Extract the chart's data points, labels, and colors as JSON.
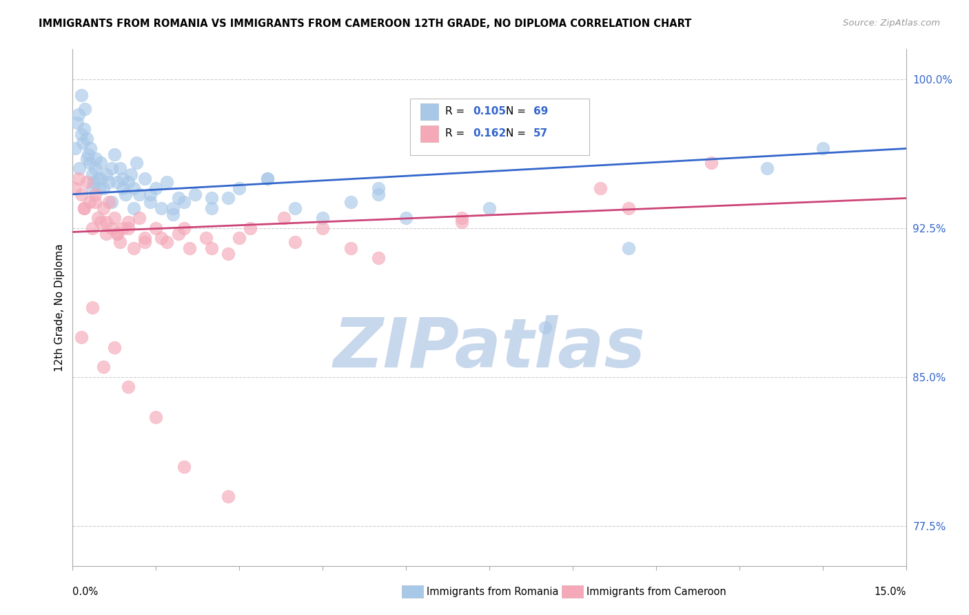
{
  "title": "IMMIGRANTS FROM ROMANIA VS IMMIGRANTS FROM CAMEROON 12TH GRADE, NO DIPLOMA CORRELATION CHART",
  "source": "Source: ZipAtlas.com",
  "ylabel": "12th Grade, No Diploma",
  "xlim": [
    0.0,
    15.0
  ],
  "ylim": [
    75.5,
    101.5
  ],
  "yticks": [
    77.5,
    85.0,
    92.5,
    100.0
  ],
  "ytick_labels": [
    "77.5%",
    "85.0%",
    "92.5%",
    "100.0%"
  ],
  "romania_color": "#a8c8e8",
  "cameroon_color": "#f4a8b8",
  "line_romania_color": "#3366cc",
  "line_cameroon_color": "#cc4477",
  "legend_text_color": "#3366cc",
  "romania_R": 0.105,
  "romania_N": 69,
  "cameroon_R": 0.162,
  "cameroon_N": 57,
  "watermark": "ZIPatlas",
  "watermark_color": "#c8d8ec",
  "romania_line_y0": 94.2,
  "romania_line_y1": 96.5,
  "cameroon_line_y0": 92.3,
  "cameroon_line_y1": 94.0,
  "romania_x": [
    0.05,
    0.08,
    0.1,
    0.12,
    0.15,
    0.18,
    0.2,
    0.22,
    0.25,
    0.28,
    0.3,
    0.32,
    0.35,
    0.38,
    0.4,
    0.42,
    0.45,
    0.48,
    0.5,
    0.55,
    0.6,
    0.65,
    0.7,
    0.75,
    0.8,
    0.85,
    0.9,
    0.95,
    1.0,
    1.05,
    1.1,
    1.15,
    1.2,
    1.3,
    1.4,
    1.5,
    1.6,
    1.7,
    1.8,
    1.9,
    2.0,
    2.2,
    2.5,
    2.8,
    3.0,
    3.5,
    4.0,
    4.5,
    5.0,
    5.5,
    6.0,
    7.5,
    8.5,
    10.0,
    12.5,
    13.5,
    0.15,
    0.25,
    0.35,
    0.5,
    0.7,
    0.9,
    1.1,
    1.4,
    1.8,
    2.5,
    3.5,
    5.5,
    9.0
  ],
  "romania_y": [
    96.5,
    97.8,
    98.2,
    95.5,
    99.2,
    96.8,
    97.5,
    98.5,
    97.0,
    96.2,
    95.8,
    96.5,
    95.2,
    94.8,
    95.5,
    96.0,
    95.0,
    94.5,
    95.8,
    94.5,
    95.2,
    94.8,
    95.5,
    96.2,
    94.8,
    95.5,
    95.0,
    94.2,
    94.8,
    95.2,
    94.5,
    95.8,
    94.2,
    95.0,
    93.8,
    94.5,
    93.5,
    94.8,
    93.2,
    94.0,
    93.8,
    94.2,
    93.5,
    94.0,
    94.5,
    95.0,
    93.5,
    93.0,
    93.8,
    94.2,
    93.0,
    93.5,
    87.5,
    91.5,
    95.5,
    96.5,
    97.2,
    96.0,
    94.5,
    95.0,
    93.8,
    94.5,
    93.5,
    94.2,
    93.5,
    94.0,
    95.0,
    94.5,
    96.5
  ],
  "cameroon_x": [
    0.05,
    0.1,
    0.15,
    0.2,
    0.25,
    0.3,
    0.35,
    0.4,
    0.45,
    0.5,
    0.55,
    0.6,
    0.65,
    0.7,
    0.75,
    0.8,
    0.85,
    0.9,
    1.0,
    1.1,
    1.2,
    1.3,
    1.5,
    1.7,
    1.9,
    2.1,
    2.4,
    2.8,
    3.2,
    3.8,
    4.5,
    5.5,
    7.0,
    9.5,
    11.5,
    0.2,
    0.4,
    0.6,
    0.8,
    1.0,
    1.3,
    1.6,
    2.0,
    2.5,
    3.0,
    4.0,
    5.0,
    7.0,
    10.0,
    0.15,
    0.35,
    0.55,
    0.75,
    1.0,
    1.5,
    2.0,
    2.8
  ],
  "cameroon_y": [
    94.5,
    95.0,
    94.2,
    93.5,
    94.8,
    93.8,
    92.5,
    94.2,
    93.0,
    92.8,
    93.5,
    92.2,
    93.8,
    92.5,
    93.0,
    92.2,
    91.8,
    92.5,
    92.8,
    91.5,
    93.0,
    92.0,
    92.5,
    91.8,
    92.2,
    91.5,
    92.0,
    91.2,
    92.5,
    93.0,
    92.5,
    91.0,
    92.8,
    94.5,
    95.8,
    93.5,
    93.8,
    92.8,
    92.2,
    92.5,
    91.8,
    92.0,
    92.5,
    91.5,
    92.0,
    91.8,
    91.5,
    93.0,
    93.5,
    87.0,
    88.5,
    85.5,
    86.5,
    84.5,
    83.0,
    80.5,
    79.0
  ]
}
